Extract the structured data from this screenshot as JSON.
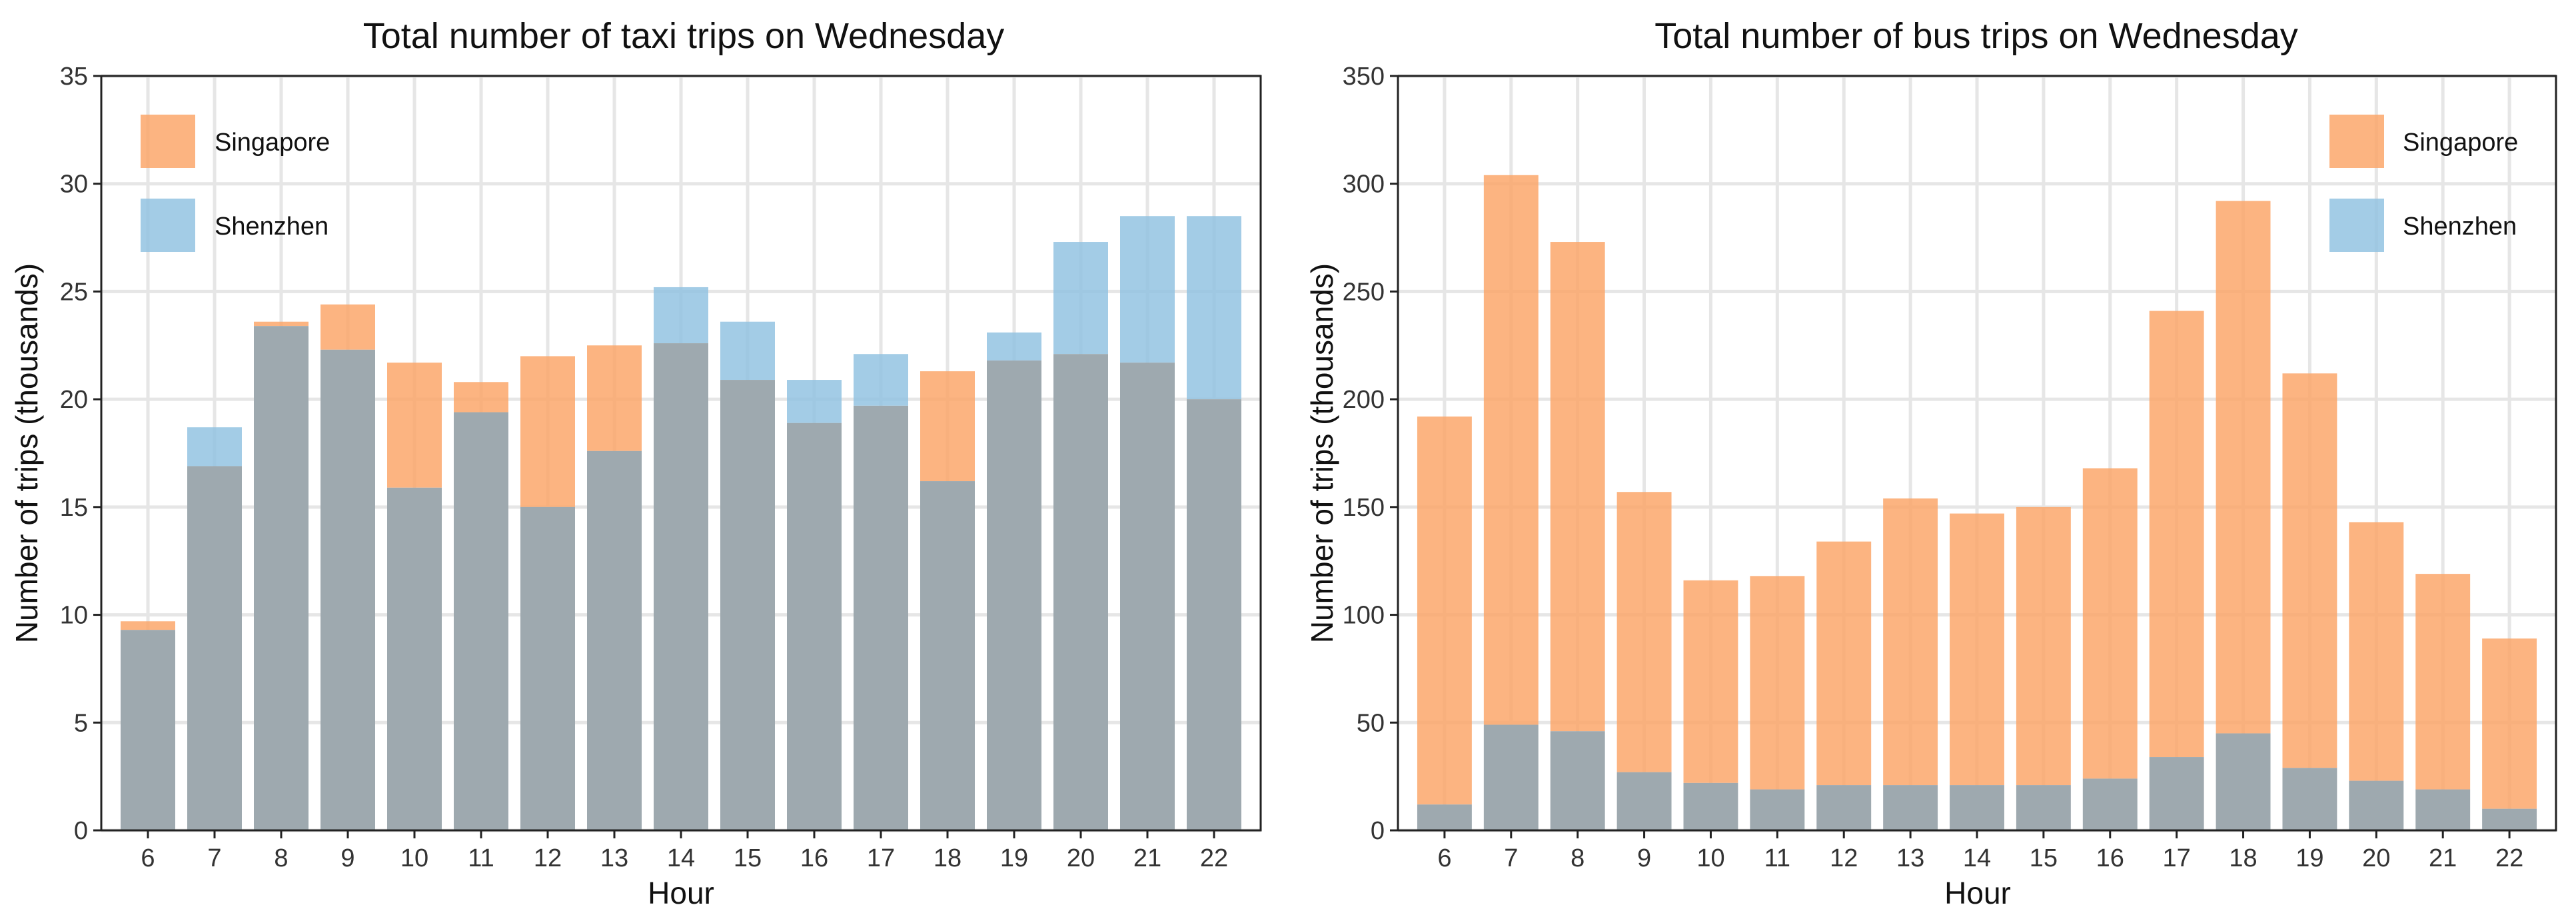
{
  "colors": {
    "singapore": "#fba465",
    "shenzhen": "#8fc1e0",
    "overlap": "#9ea9af"
  },
  "chart_data": [
    {
      "type": "bar",
      "title": "Total number of taxi trips on Wednesday",
      "xlabel": "Hour",
      "ylabel": "Number of trips (thousands)",
      "ylim": [
        0,
        35
      ],
      "yticks": [
        0,
        5,
        10,
        15,
        20,
        25,
        30,
        35
      ],
      "grid": true,
      "legend_position": "top-left",
      "categories": [
        "6",
        "7",
        "8",
        "9",
        "10",
        "11",
        "12",
        "13",
        "14",
        "15",
        "16",
        "17",
        "18",
        "19",
        "20",
        "21",
        "22"
      ],
      "series": [
        {
          "name": "Singapore",
          "values": [
            9.7,
            16.9,
            23.6,
            24.4,
            21.7,
            20.8,
            22.0,
            22.5,
            22.6,
            20.9,
            18.9,
            19.7,
            21.3,
            21.8,
            22.1,
            21.7,
            20.0
          ]
        },
        {
          "name": "Shenzhen",
          "values": [
            9.3,
            18.7,
            23.4,
            22.3,
            15.9,
            19.4,
            15.0,
            17.6,
            25.2,
            23.6,
            20.9,
            22.1,
            16.2,
            23.1,
            27.3,
            28.5,
            28.5
          ]
        }
      ]
    },
    {
      "type": "bar",
      "title": "Total number of bus trips on Wednesday",
      "xlabel": "Hour",
      "ylabel": "Number of trips (thousands)",
      "ylim": [
        0,
        350
      ],
      "yticks": [
        0,
        50,
        100,
        150,
        200,
        250,
        300,
        350
      ],
      "grid": true,
      "legend_position": "top-right",
      "categories": [
        "6",
        "7",
        "8",
        "9",
        "10",
        "11",
        "12",
        "13",
        "14",
        "15",
        "16",
        "17",
        "18",
        "19",
        "20",
        "21",
        "22"
      ],
      "series": [
        {
          "name": "Singapore",
          "values": [
            192,
            304,
            273,
            157,
            116,
            118,
            134,
            154,
            147,
            150,
            168,
            241,
            292,
            212,
            143,
            119,
            89
          ]
        },
        {
          "name": "Shenzhen",
          "values": [
            12,
            49,
            46,
            27,
            22,
            19,
            21,
            21,
            21,
            21,
            24,
            34,
            45,
            29,
            23,
            19,
            10
          ]
        }
      ]
    }
  ]
}
